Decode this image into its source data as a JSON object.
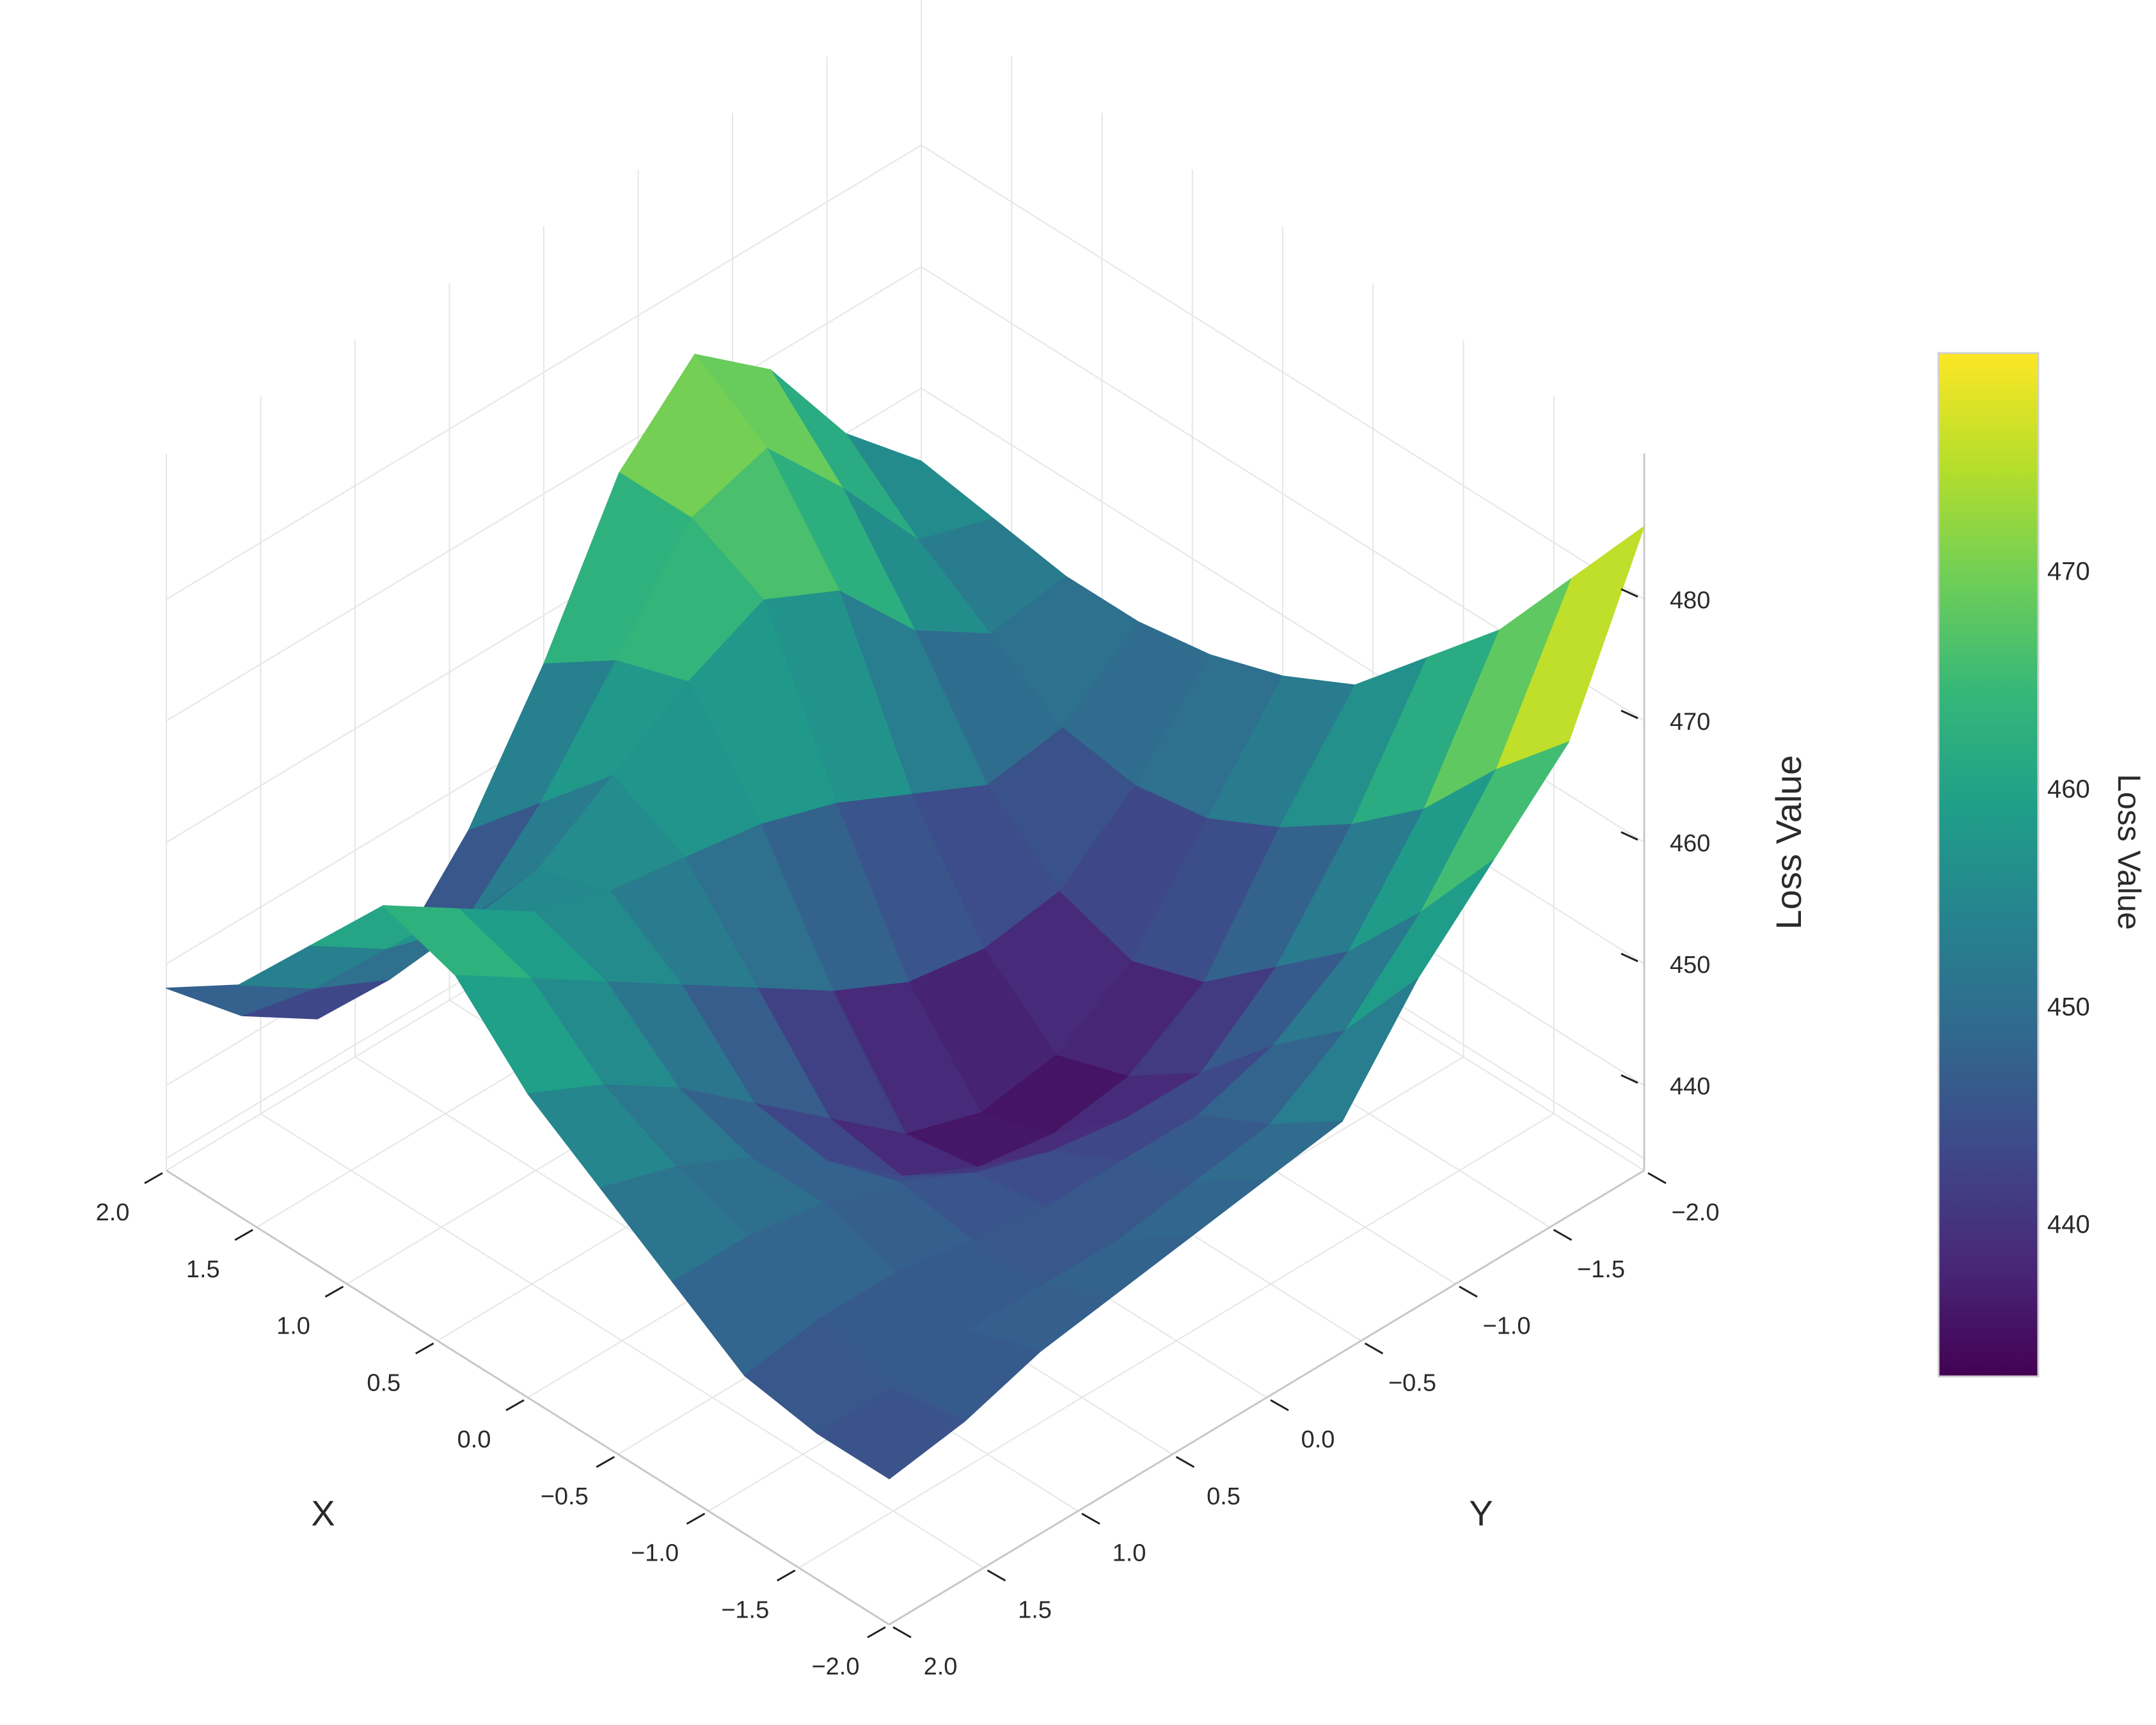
{
  "chart_data": {
    "type": "surface3d",
    "colorscale": "viridis",
    "colorscale_stops": [
      "#440154",
      "#482878",
      "#3e4989",
      "#31688e",
      "#26828e",
      "#1f9e89",
      "#35b779",
      "#6ece58",
      "#b5de2b",
      "#fde725"
    ],
    "x_axis": {
      "title": "X",
      "range": [
        -2.0,
        2.0
      ],
      "ticks": [
        2.0,
        1.5,
        1.0,
        0.5,
        0.0,
        -0.5,
        -1.0,
        -1.5,
        -2.0
      ],
      "tick_labels": [
        "2.0",
        "1.5",
        "1.0",
        "0.5",
        "0.0",
        "−0.5",
        "−1.0",
        "−1.5",
        "−2.0"
      ]
    },
    "y_axis": {
      "title": "Y",
      "range": [
        -2.0,
        2.0
      ],
      "ticks": [
        -2.0,
        -1.5,
        -1.0,
        -0.5,
        0.0,
        0.5,
        1.0,
        1.5,
        2.0
      ],
      "tick_labels": [
        "−2.0",
        "−1.5",
        "−1.0",
        "−0.5",
        "0.0",
        "0.5",
        "1.0",
        "1.5",
        "2.0"
      ]
    },
    "z_axis": {
      "title": "Loss Value",
      "range": [
        433,
        490
      ],
      "ticks": [
        440,
        450,
        460,
        470,
        480
      ],
      "tick_labels": [
        "440",
        "450",
        "460",
        "470",
        "480"
      ]
    },
    "colorbar": {
      "title": "Loss Value",
      "range": [
        433,
        480
      ],
      "ticks": [
        440,
        450,
        460,
        470
      ],
      "tick_labels": [
        "440",
        "450",
        "460",
        "470"
      ]
    },
    "grid": true,
    "surface_grid": {
      "x": [
        -2.0,
        -1.6,
        -1.2,
        -0.8,
        -0.4,
        0.0,
        0.4,
        0.8,
        1.2,
        1.6,
        2.0
      ],
      "y": [
        -2.0,
        -1.6,
        -1.2,
        -0.8,
        -0.4,
        0.0,
        0.4,
        0.8,
        1.2,
        1.6,
        2.0
      ],
      "z": [
        [
          486,
          472,
          466,
          460,
          452,
          451,
          450,
          449,
          448,
          446,
          445
        ],
        [
          478,
          466,
          458,
          452,
          448,
          447,
          446,
          446,
          446,
          445,
          445
        ],
        [
          470,
          459,
          451,
          447,
          445,
          445,
          445,
          446,
          447,
          447,
          446
        ],
        [
          464,
          454,
          446,
          441,
          441,
          442,
          444,
          447,
          449,
          450,
          450
        ],
        [
          458,
          450,
          441,
          437,
          436,
          437,
          440,
          445,
          449,
          452,
          454
        ],
        [
          455,
          447,
          439,
          435,
          434,
          436,
          441,
          446,
          451,
          455,
          458
        ],
        [
          453,
          446,
          441,
          440,
          441,
          444,
          448,
          452,
          456,
          460,
          464
        ],
        [
          452,
          447,
          446,
          449,
          452,
          454,
          455,
          456,
          458,
          462,
          466
        ],
        [
          452,
          451,
          455,
          462,
          465,
          462,
          458,
          454,
          453,
          455,
          459
        ],
        [
          453,
          455,
          463,
          470,
          468,
          460,
          452,
          446,
          445,
          448,
          452
        ],
        [
          454,
          460,
          469,
          474,
          468,
          456,
          446,
          439,
          438,
          442,
          448
        ]
      ]
    }
  }
}
